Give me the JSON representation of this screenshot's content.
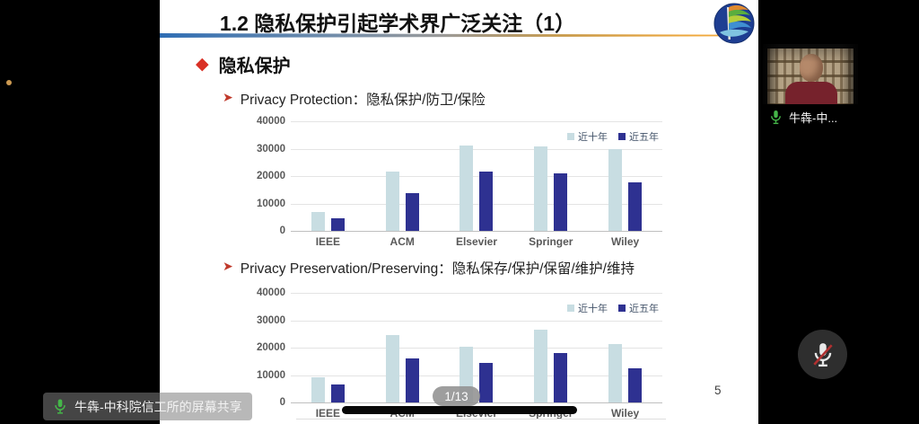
{
  "slide": {
    "title": "1.2 隐私保护引起学术界广泛关注（1）",
    "section_heading": "隐私保护",
    "bullets": [
      {
        "label": "Privacy Protection：隐私保护/防卫/保险"
      },
      {
        "label": "Privacy Preservation/Preserving：隐私保存/保护/保留/维护/维持"
      }
    ],
    "page_number": "5"
  },
  "chart_data": [
    {
      "type": "bar",
      "title": "",
      "xlabel": "",
      "ylabel": "",
      "categories": [
        "IEEE",
        "ACM",
        "Elsevier",
        "Springer",
        "Wiley"
      ],
      "series": [
        {
          "name": "近十年",
          "color": "#c8dde2",
          "values": [
            6800,
            21500,
            31000,
            30800,
            30000
          ]
        },
        {
          "name": "近五年",
          "color": "#2e3191",
          "values": [
            4500,
            13800,
            21500,
            21000,
            17800
          ]
        }
      ],
      "ylim": [
        0,
        40000
      ],
      "yticks": [
        0,
        10000,
        20000,
        30000,
        40000
      ],
      "legend_position": "top-right",
      "grid": true
    },
    {
      "type": "bar",
      "title": "",
      "xlabel": "",
      "ylabel": "",
      "categories": [
        "IEEE",
        "ACM",
        "Elsevier",
        "Springer",
        "Wiley"
      ],
      "series": [
        {
          "name": "近十年",
          "color": "#c8dde2",
          "values": [
            9300,
            24500,
            20200,
            26500,
            21300
          ]
        },
        {
          "name": "近五年",
          "color": "#2e3191",
          "values": [
            6700,
            16200,
            14500,
            17900,
            12500
          ]
        }
      ],
      "ylim": [
        0,
        40000
      ],
      "yticks": [
        0,
        10000,
        20000,
        30000,
        40000
      ],
      "legend_position": "top-right",
      "grid": true
    }
  ],
  "presentation_overlay": {
    "page_indicator": "1/13"
  },
  "sidebar": {
    "participant": {
      "name": "牛犇-中...",
      "mic_on": true
    }
  },
  "share_banner": {
    "text": "牛犇-中科院信工所的屏幕共享"
  },
  "controls": {
    "mic_button_muted": true
  },
  "colors": {
    "bar_recent10": "#c8dde2",
    "bar_recent5": "#2e3191",
    "accent_red": "#d93025",
    "mic_green": "#45b649",
    "mute_red": "#b03030"
  }
}
